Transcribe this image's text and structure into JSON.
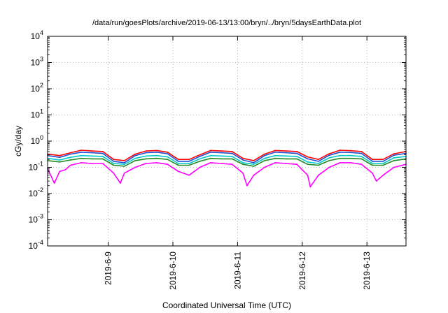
{
  "chart_data": {
    "type": "line",
    "title": "/data/run/goesPlots/archive/2019-06-13/13:00/bryn/../bryn/5daysEarthData.plot",
    "xlabel": "Coordinated Universal Time (UTC)",
    "ylabel": "cGy/day",
    "y_scale": "log",
    "ylim": [
      0.0001,
      10000
    ],
    "xlim": [
      "2019-06-08T01:30",
      "2019-06-13T14:30"
    ],
    "grid": true,
    "y_ticks": [
      {
        "value": 0.0001,
        "mantissa": "10",
        "exponent": "-4"
      },
      {
        "value": 0.001,
        "mantissa": "10",
        "exponent": "-3"
      },
      {
        "value": 0.01,
        "mantissa": "10",
        "exponent": "-2"
      },
      {
        "value": 0.1,
        "mantissa": "10",
        "exponent": "-1"
      },
      {
        "value": 1,
        "mantissa": "10",
        "exponent": "0"
      },
      {
        "value": 10,
        "mantissa": "10",
        "exponent": "1"
      },
      {
        "value": 100,
        "mantissa": "10",
        "exponent": "2"
      },
      {
        "value": 1000,
        "mantissa": "10",
        "exponent": "3"
      },
      {
        "value": 10000,
        "mantissa": "10",
        "exponent": "4"
      }
    ],
    "x_ticks": [
      {
        "value": "2019-06-09T00:00",
        "label": "2019-6-9"
      },
      {
        "value": "2019-06-10T00:00",
        "label": "2019-6-10"
      },
      {
        "value": "2019-06-11T00:00",
        "label": "2019-6-11"
      },
      {
        "value": "2019-06-12T00:00",
        "label": "2019-6-12"
      },
      {
        "value": "2019-06-13T00:00",
        "label": "2019-6-13"
      }
    ],
    "series": [
      {
        "color": "#ff0000",
        "x": [
          "2019-06-08T01:30",
          "2019-06-08T06:00",
          "2019-06-08T10:00",
          "2019-06-08T14:00",
          "2019-06-08T18:00",
          "2019-06-08T22:00",
          "2019-06-09T02:00",
          "2019-06-09T06:00",
          "2019-06-09T10:00",
          "2019-06-09T14:00",
          "2019-06-09T18:00",
          "2019-06-09T22:00",
          "2019-06-10T02:00",
          "2019-06-10T06:00",
          "2019-06-10T10:00",
          "2019-06-10T14:00",
          "2019-06-10T18:00",
          "2019-06-10T22:00",
          "2019-06-11T02:00",
          "2019-06-11T06:00",
          "2019-06-11T10:00",
          "2019-06-11T14:00",
          "2019-06-11T18:00",
          "2019-06-11T22:00",
          "2019-06-12T02:00",
          "2019-06-12T06:00",
          "2019-06-12T10:00",
          "2019-06-12T14:00",
          "2019-06-12T18:00",
          "2019-06-12T22:00",
          "2019-06-13T02:00",
          "2019-06-13T06:00",
          "2019-06-13T10:00",
          "2019-06-13T14:30"
        ],
        "values": [
          0.32,
          0.28,
          0.36,
          0.45,
          0.42,
          0.4,
          0.2,
          0.18,
          0.32,
          0.42,
          0.44,
          0.38,
          0.2,
          0.2,
          0.3,
          0.44,
          0.42,
          0.4,
          0.22,
          0.18,
          0.32,
          0.44,
          0.42,
          0.4,
          0.25,
          0.2,
          0.33,
          0.45,
          0.43,
          0.4,
          0.2,
          0.2,
          0.33,
          0.4
        ]
      },
      {
        "color": "#1f4fd0",
        "x": [
          "2019-06-08T01:30",
          "2019-06-08T06:00",
          "2019-06-08T10:00",
          "2019-06-08T14:00",
          "2019-06-08T18:00",
          "2019-06-08T22:00",
          "2019-06-09T02:00",
          "2019-06-09T06:00",
          "2019-06-09T10:00",
          "2019-06-09T14:00",
          "2019-06-09T18:00",
          "2019-06-09T22:00",
          "2019-06-10T02:00",
          "2019-06-10T06:00",
          "2019-06-10T10:00",
          "2019-06-10T14:00",
          "2019-06-10T18:00",
          "2019-06-10T22:00",
          "2019-06-11T02:00",
          "2019-06-11T06:00",
          "2019-06-11T10:00",
          "2019-06-11T14:00",
          "2019-06-11T18:00",
          "2019-06-11T22:00",
          "2019-06-12T02:00",
          "2019-06-12T06:00",
          "2019-06-12T10:00",
          "2019-06-12T14:00",
          "2019-06-12T18:00",
          "2019-06-12T22:00",
          "2019-06-13T02:00",
          "2019-06-13T06:00",
          "2019-06-13T10:00",
          "2019-06-13T14:30"
        ],
        "values": [
          0.28,
          0.24,
          0.32,
          0.38,
          0.36,
          0.34,
          0.17,
          0.15,
          0.28,
          0.36,
          0.38,
          0.33,
          0.17,
          0.17,
          0.26,
          0.38,
          0.36,
          0.34,
          0.19,
          0.15,
          0.28,
          0.38,
          0.36,
          0.34,
          0.21,
          0.17,
          0.29,
          0.38,
          0.37,
          0.34,
          0.17,
          0.17,
          0.29,
          0.34
        ]
      },
      {
        "color": "#00c8c8",
        "x": [
          "2019-06-08T01:30",
          "2019-06-08T06:00",
          "2019-06-08T10:00",
          "2019-06-08T14:00",
          "2019-06-08T18:00",
          "2019-06-08T22:00",
          "2019-06-09T02:00",
          "2019-06-09T06:00",
          "2019-06-09T10:00",
          "2019-06-09T14:00",
          "2019-06-09T18:00",
          "2019-06-09T22:00",
          "2019-06-10T02:00",
          "2019-06-10T06:00",
          "2019-06-10T10:00",
          "2019-06-10T14:00",
          "2019-06-10T18:00",
          "2019-06-10T22:00",
          "2019-06-11T02:00",
          "2019-06-11T06:00",
          "2019-06-11T10:00",
          "2019-06-11T14:00",
          "2019-06-11T18:00",
          "2019-06-11T22:00",
          "2019-06-12T02:00",
          "2019-06-12T06:00",
          "2019-06-12T10:00",
          "2019-06-12T14:00",
          "2019-06-12T18:00",
          "2019-06-12T22:00",
          "2019-06-13T02:00",
          "2019-06-13T06:00",
          "2019-06-13T10:00",
          "2019-06-13T14:30"
        ],
        "values": [
          0.22,
          0.19,
          0.24,
          0.28,
          0.27,
          0.26,
          0.14,
          0.13,
          0.22,
          0.27,
          0.28,
          0.25,
          0.14,
          0.14,
          0.21,
          0.28,
          0.27,
          0.26,
          0.15,
          0.13,
          0.22,
          0.28,
          0.27,
          0.26,
          0.16,
          0.14,
          0.23,
          0.28,
          0.28,
          0.26,
          0.14,
          0.14,
          0.23,
          0.26
        ]
      },
      {
        "color": "#228b22",
        "x": [
          "2019-06-08T01:30",
          "2019-06-08T06:00",
          "2019-06-08T10:00",
          "2019-06-08T14:00",
          "2019-06-08T18:00",
          "2019-06-08T22:00",
          "2019-06-09T02:00",
          "2019-06-09T06:00",
          "2019-06-09T10:00",
          "2019-06-09T14:00",
          "2019-06-09T18:00",
          "2019-06-09T22:00",
          "2019-06-10T02:00",
          "2019-06-10T06:00",
          "2019-06-10T10:00",
          "2019-06-10T14:00",
          "2019-06-10T18:00",
          "2019-06-10T22:00",
          "2019-06-11T02:00",
          "2019-06-11T06:00",
          "2019-06-11T10:00",
          "2019-06-11T14:00",
          "2019-06-11T18:00",
          "2019-06-11T22:00",
          "2019-06-12T02:00",
          "2019-06-12T06:00",
          "2019-06-12T10:00",
          "2019-06-12T14:00",
          "2019-06-12T18:00",
          "2019-06-12T22:00",
          "2019-06-13T02:00",
          "2019-06-13T06:00",
          "2019-06-13T10:00",
          "2019-06-13T14:30"
        ],
        "values": [
          0.18,
          0.16,
          0.19,
          0.22,
          0.21,
          0.21,
          0.12,
          0.11,
          0.18,
          0.21,
          0.22,
          0.2,
          0.12,
          0.12,
          0.17,
          0.22,
          0.21,
          0.21,
          0.13,
          0.11,
          0.18,
          0.22,
          0.21,
          0.21,
          0.13,
          0.12,
          0.18,
          0.22,
          0.22,
          0.21,
          0.12,
          0.12,
          0.18,
          0.21
        ]
      },
      {
        "color": "#ff00ff",
        "x": [
          "2019-06-08T01:30",
          "2019-06-08T04:00",
          "2019-06-08T06:00",
          "2019-06-08T08:00",
          "2019-06-08T10:00",
          "2019-06-08T14:00",
          "2019-06-08T18:00",
          "2019-06-08T22:00",
          "2019-06-09T02:00",
          "2019-06-09T04:30",
          "2019-06-09T06:00",
          "2019-06-09T10:00",
          "2019-06-09T14:00",
          "2019-06-09T18:00",
          "2019-06-09T22:00",
          "2019-06-10T02:00",
          "2019-06-10T06:00",
          "2019-06-10T10:00",
          "2019-06-10T14:00",
          "2019-06-10T18:00",
          "2019-06-10T22:00",
          "2019-06-11T02:00",
          "2019-06-11T03:30",
          "2019-06-11T06:00",
          "2019-06-11T10:00",
          "2019-06-11T14:00",
          "2019-06-11T18:00",
          "2019-06-11T22:00",
          "2019-06-12T02:00",
          "2019-06-12T03:00",
          "2019-06-12T06:00",
          "2019-06-12T10:00",
          "2019-06-12T14:00",
          "2019-06-12T18:00",
          "2019-06-12T22:00",
          "2019-06-13T02:00",
          "2019-06-13T03:30",
          "2019-06-13T06:00",
          "2019-06-13T10:00",
          "2019-06-13T14:30"
        ],
        "values": [
          0.09,
          0.025,
          0.07,
          0.08,
          0.12,
          0.15,
          0.14,
          0.14,
          0.06,
          0.025,
          0.06,
          0.1,
          0.14,
          0.15,
          0.13,
          0.07,
          0.05,
          0.1,
          0.15,
          0.14,
          0.13,
          0.06,
          0.02,
          0.05,
          0.1,
          0.15,
          0.14,
          0.13,
          0.05,
          0.018,
          0.05,
          0.1,
          0.15,
          0.15,
          0.13,
          0.06,
          0.03,
          0.05,
          0.1,
          0.13
        ]
      }
    ]
  }
}
